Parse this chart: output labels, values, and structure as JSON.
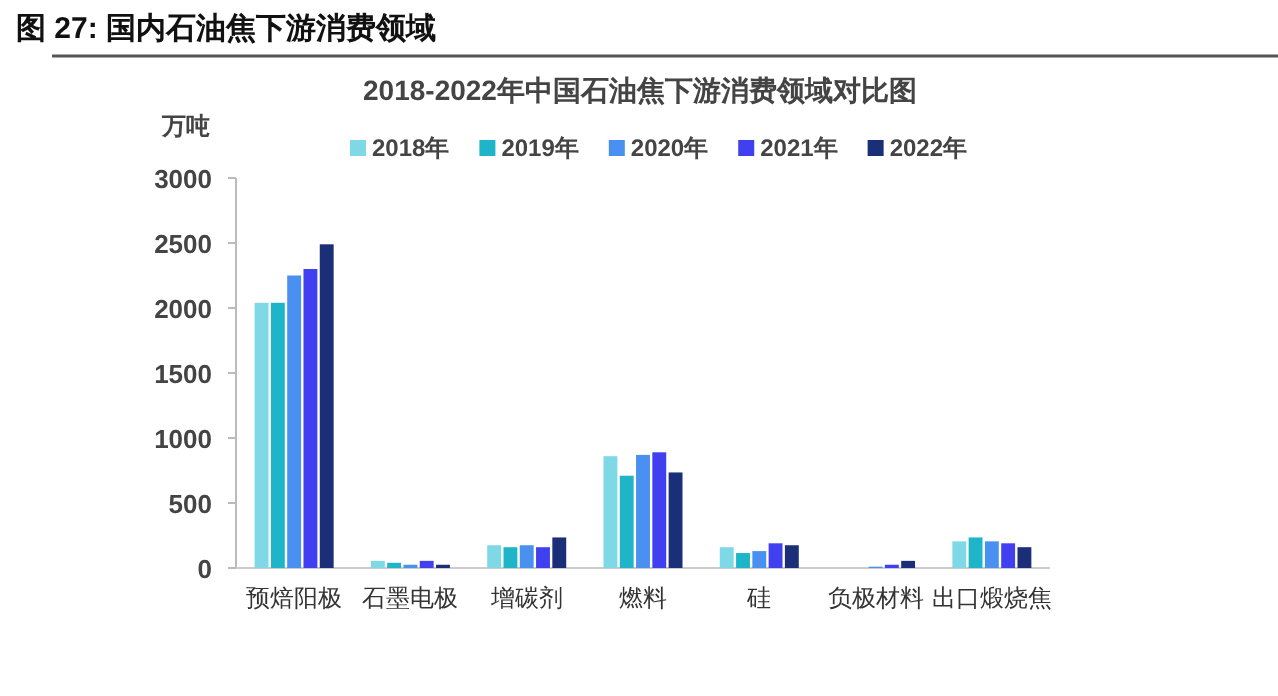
{
  "chart_data": {
    "type": "bar",
    "title": "图 27: 国内石油焦下游消费领域",
    "subtitle": "2018-2022年中国石油焦下游消费领域对比图",
    "ylabel": "万吨",
    "categories": [
      "预焙阳极",
      "石墨电极",
      "增碳剂",
      "燃料",
      "硅",
      "负极材料",
      "出口煅烧焦"
    ],
    "series": [
      {
        "name": "2018年",
        "color": "#7fd8e6",
        "values": [
          2040,
          55,
          175,
          860,
          160,
          0,
          205
        ]
      },
      {
        "name": "2019年",
        "color": "#1fb5c9",
        "values": [
          2040,
          40,
          160,
          710,
          115,
          0,
          235
        ]
      },
      {
        "name": "2020年",
        "color": "#4a90f0",
        "values": [
          2250,
          25,
          175,
          870,
          130,
          10,
          205
        ]
      },
      {
        "name": "2021年",
        "color": "#4040f0",
        "values": [
          2300,
          55,
          160,
          890,
          190,
          25,
          190
        ]
      },
      {
        "name": "2022年",
        "color": "#1a2f78",
        "values": [
          2490,
          25,
          235,
          735,
          175,
          55,
          160
        ]
      }
    ],
    "ylim": [
      0,
      3000
    ],
    "yticks": [
      0,
      500,
      1000,
      1500,
      2000,
      2500,
      3000
    ],
    "legend": "top",
    "grid": false
  }
}
